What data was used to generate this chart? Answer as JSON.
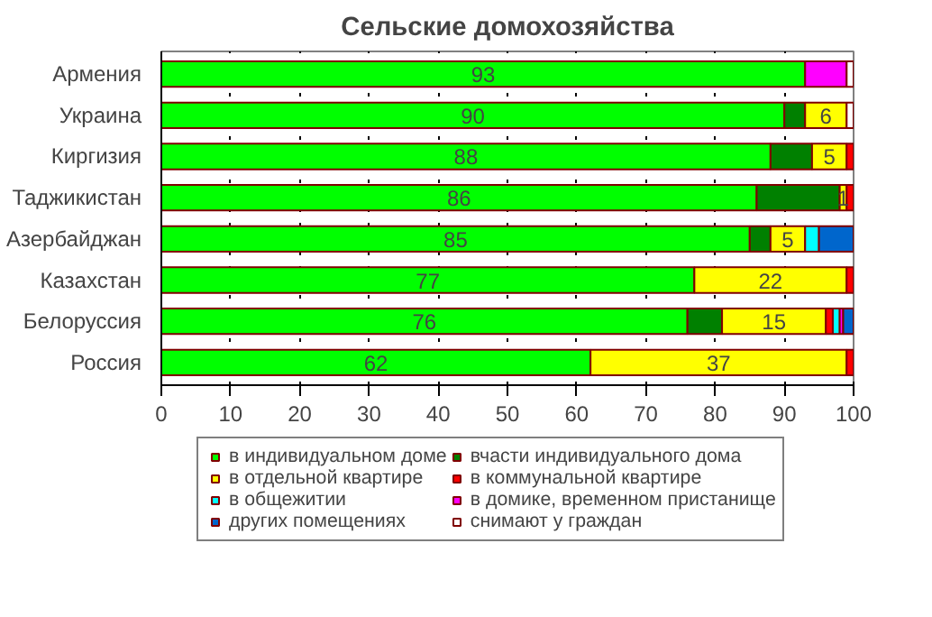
{
  "chart_data": {
    "type": "bar",
    "orientation": "horizontal",
    "stacked": true,
    "title": "Сельские домохозяйства",
    "categories": [
      "Армения",
      "Украина",
      "Киргизия",
      "Таджикистан",
      "Азербайджан",
      "Казахстан",
      "Белоруссия",
      "Россия"
    ],
    "series": [
      {
        "name": "в индивидуальном доме",
        "color": "#00ff00",
        "values": [
          93,
          90,
          88,
          86,
          85,
          77,
          76,
          62
        ],
        "value_labels": [
          "93",
          "90",
          "88",
          "86",
          "85",
          "77",
          "76",
          "62"
        ]
      },
      {
        "name": "вчасти индивидуального дома",
        "color": "#008000",
        "values": [
          null,
          3,
          6,
          12,
          3,
          null,
          5,
          null
        ]
      },
      {
        "name": "в отдельной квартире",
        "color": "#ffff00",
        "values": [
          null,
          6,
          5,
          1,
          5,
          22,
          15,
          37
        ],
        "value_labels": [
          null,
          "6",
          "5",
          "1",
          "5",
          "22",
          "15",
          "37"
        ]
      },
      {
        "name": "в коммунальной квартире",
        "color": "#ff0000",
        "values": [
          null,
          null,
          1,
          1,
          null,
          1,
          1,
          1
        ]
      },
      {
        "name": "в общежитии",
        "color": "#00ffff",
        "values": [
          null,
          null,
          null,
          null,
          2,
          null,
          1,
          null
        ]
      },
      {
        "name": "в домике, временном пристанище",
        "color": "#ff00ff",
        "values": [
          6,
          null,
          null,
          null,
          null,
          null,
          0.5,
          null
        ]
      },
      {
        "name": "других помещениях",
        "color": "#0066cc",
        "values": [
          null,
          null,
          null,
          null,
          5,
          null,
          1.5,
          null
        ]
      },
      {
        "name": "снимают у граждан",
        "color": "#ffffff",
        "values": [
          1,
          1,
          null,
          null,
          null,
          null,
          null,
          null
        ]
      }
    ],
    "xlim": [
      0,
      100
    ],
    "xticks": [
      0,
      10,
      20,
      30,
      40,
      50,
      60,
      70,
      80,
      90,
      100
    ],
    "grid": "x",
    "legend": "bottom"
  }
}
